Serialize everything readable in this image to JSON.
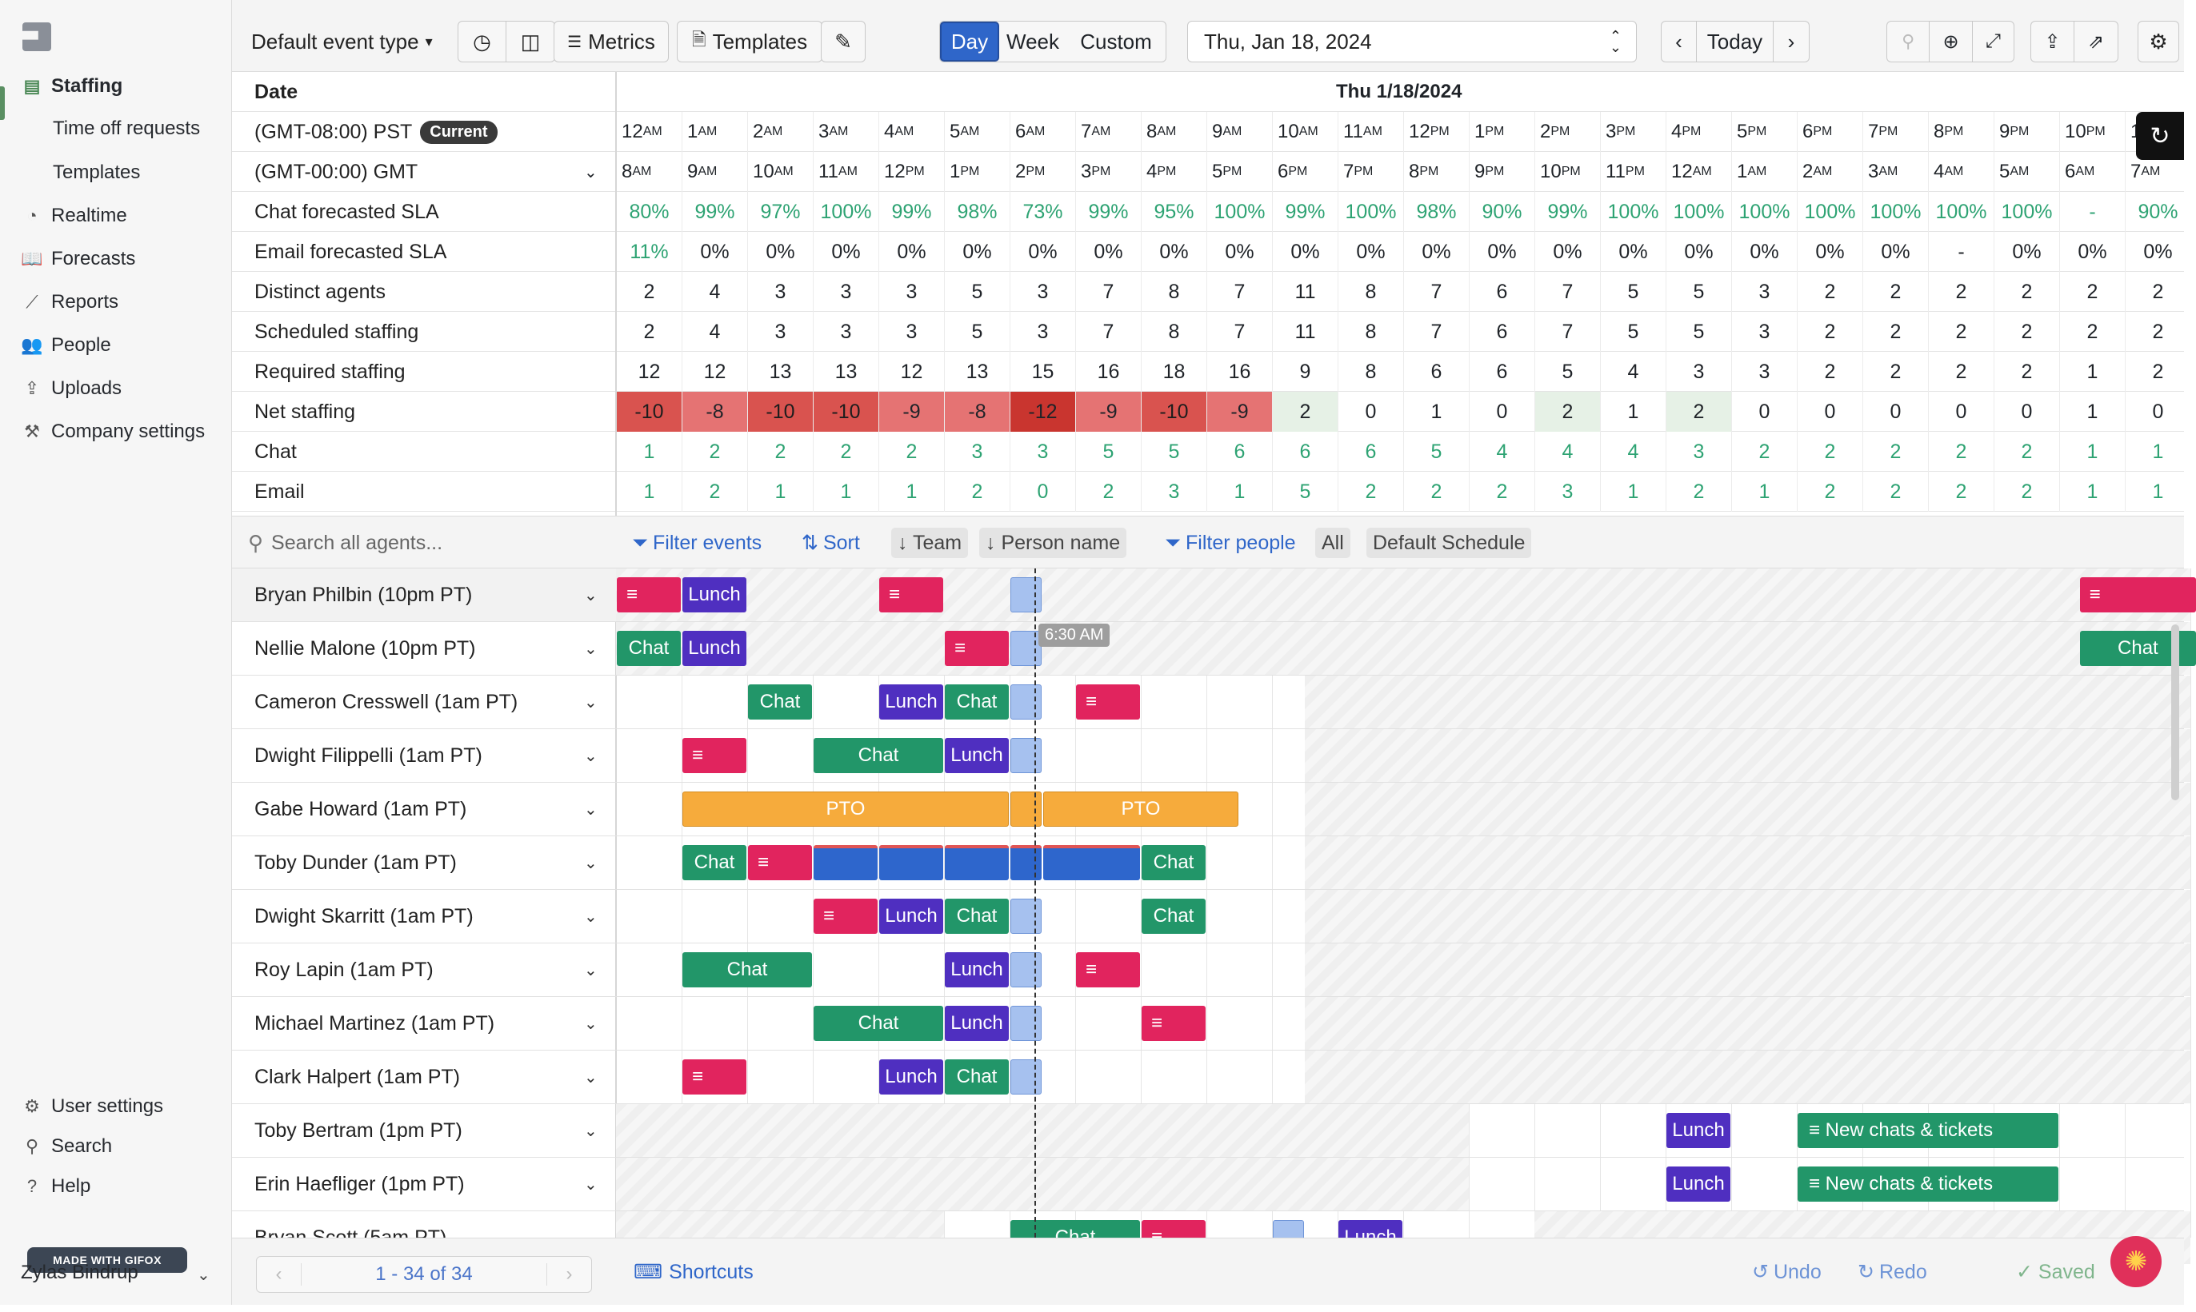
{
  "sidebar": {
    "items": [
      {
        "label": "Staffing",
        "icon": "staffing-icon",
        "glyph": "▤"
      },
      {
        "label": "Time off requests"
      },
      {
        "label": "Templates"
      },
      {
        "label": "Realtime",
        "icon": "gauge-icon",
        "glyph": "◔"
      },
      {
        "label": "Forecasts",
        "icon": "book-icon",
        "glyph": "📖"
      },
      {
        "label": "Reports",
        "icon": "trend-icon",
        "glyph": "⟋"
      },
      {
        "label": "People",
        "icon": "people-icon",
        "glyph": "👥"
      },
      {
        "label": "Uploads",
        "icon": "upload-icon",
        "glyph": "⇪"
      },
      {
        "label": "Company settings",
        "icon": "tools-icon",
        "glyph": "⚒"
      }
    ],
    "bottom": [
      {
        "label": "User settings",
        "icon": "gear-icon",
        "glyph": "⚙"
      },
      {
        "label": "Search",
        "icon": "search-icon",
        "glyph": "⚲"
      },
      {
        "label": "Help",
        "icon": "help-icon",
        "glyph": "?"
      }
    ],
    "gifox": "MADE WITH GIFOX",
    "user": "Zylas Bindrup"
  },
  "toolbar": {
    "event_type": "Default event type",
    "metrics": "Metrics",
    "templates": "Templates",
    "views": [
      "Day",
      "Week",
      "Custom"
    ],
    "date": "Thu, Jan 18, 2024",
    "today": "Today"
  },
  "grid": {
    "date_header": "Date",
    "day_header": "Thu 1/18/2024",
    "tz1": "(GMT-08:00) PST",
    "tz1_badge": "Current",
    "tz2": "(GMT-00:00) GMT",
    "pst_hours": [
      "12",
      "1",
      "2",
      "3",
      "4",
      "5",
      "6",
      "7",
      "8",
      "9",
      "10",
      "11",
      "12",
      "1",
      "2",
      "3",
      "4",
      "5",
      "6",
      "7",
      "8",
      "9",
      "10",
      "1"
    ],
    "pst_ampm": [
      "AM",
      "AM",
      "AM",
      "AM",
      "AM",
      "AM",
      "AM",
      "AM",
      "AM",
      "AM",
      "AM",
      "AM",
      "PM",
      "PM",
      "PM",
      "PM",
      "PM",
      "PM",
      "PM",
      "PM",
      "PM",
      "PM",
      "PM",
      ""
    ],
    "gmt_hours": [
      "8",
      "9",
      "10",
      "11",
      "12",
      "1",
      "2",
      "3",
      "4",
      "5",
      "6",
      "7",
      "8",
      "9",
      "10",
      "11",
      "12",
      "1",
      "2",
      "3",
      "4",
      "5",
      "6",
      "7"
    ],
    "gmt_ampm": [
      "AM",
      "AM",
      "AM",
      "AM",
      "PM",
      "PM",
      "PM",
      "PM",
      "PM",
      "PM",
      "PM",
      "PM",
      "PM",
      "PM",
      "PM",
      "PM",
      "AM",
      "AM",
      "AM",
      "AM",
      "AM",
      "AM",
      "AM",
      "AM"
    ],
    "rows": [
      {
        "label": "Chat forecasted SLA",
        "green": true,
        "values": [
          "80%",
          "99%",
          "97%",
          "100%",
          "99%",
          "98%",
          "73%",
          "99%",
          "95%",
          "100%",
          "99%",
          "100%",
          "98%",
          "90%",
          "99%",
          "100%",
          "100%",
          "100%",
          "100%",
          "100%",
          "100%",
          "100%",
          "-",
          "90%"
        ]
      },
      {
        "label": "Email forecasted SLA",
        "values": [
          "11%",
          "0%",
          "0%",
          "0%",
          "0%",
          "0%",
          "0%",
          "0%",
          "0%",
          "0%",
          "0%",
          "0%",
          "0%",
          "0%",
          "0%",
          "0%",
          "0%",
          "0%",
          "0%",
          "0%",
          "-",
          "0%",
          "0%",
          "0%"
        ],
        "first_green": true
      },
      {
        "label": "Distinct agents",
        "values": [
          "2",
          "4",
          "3",
          "3",
          "3",
          "5",
          "3",
          "7",
          "8",
          "7",
          "11",
          "8",
          "7",
          "6",
          "7",
          "5",
          "5",
          "3",
          "2",
          "2",
          "2",
          "2",
          "2",
          "2"
        ]
      },
      {
        "label": "Scheduled staffing",
        "values": [
          "2",
          "4",
          "3",
          "3",
          "3",
          "5",
          "3",
          "7",
          "8",
          "7",
          "11",
          "8",
          "7",
          "6",
          "7",
          "5",
          "5",
          "3",
          "2",
          "2",
          "2",
          "2",
          "2",
          "2"
        ]
      },
      {
        "label": "Required staffing",
        "values": [
          "12",
          "12",
          "13",
          "13",
          "12",
          "13",
          "15",
          "16",
          "18",
          "16",
          "9",
          "8",
          "6",
          "6",
          "5",
          "4",
          "3",
          "3",
          "2",
          "2",
          "2",
          "2",
          "1",
          "2"
        ]
      },
      {
        "label": "Net staffing",
        "net": true,
        "values": [
          "-10",
          "-8",
          "-10",
          "-10",
          "-9",
          "-8",
          "-12",
          "-9",
          "-10",
          "-9",
          "2",
          "0",
          "1",
          "0",
          "2",
          "1",
          "2",
          "0",
          "0",
          "0",
          "0",
          "0",
          "1",
          "0"
        ]
      },
      {
        "label": "Chat",
        "green": true,
        "values": [
          "1",
          "2",
          "2",
          "2",
          "2",
          "3",
          "3",
          "5",
          "5",
          "6",
          "6",
          "6",
          "5",
          "4",
          "4",
          "4",
          "3",
          "2",
          "2",
          "2",
          "2",
          "2",
          "1",
          "1"
        ]
      },
      {
        "label": "Email",
        "green": true,
        "values": [
          "1",
          "2",
          "1",
          "1",
          "1",
          "2",
          "0",
          "2",
          "3",
          "1",
          "5",
          "2",
          "2",
          "2",
          "3",
          "1",
          "2",
          "1",
          "2",
          "2",
          "2",
          "2",
          "1",
          "1"
        ]
      }
    ]
  },
  "filters": {
    "search_placeholder": "Search all agents...",
    "filter_events": "Filter events",
    "sort": "Sort",
    "team": "↓ Team",
    "person": "↓ Person name",
    "filter_people": "Filter people",
    "all": "All",
    "schedule": "Default Schedule"
  },
  "now_tip": "6:30 AM",
  "agents": [
    {
      "name": "Bryan Philbin (10pm PT)"
    },
    {
      "name": "Nellie Malone (10pm PT)"
    },
    {
      "name": "Cameron Cresswell (1am PT)"
    },
    {
      "name": "Dwight Filippelli (1am PT)"
    },
    {
      "name": "Gabe Howard (1am PT)"
    },
    {
      "name": "Toby Dunder (1am PT)"
    },
    {
      "name": "Dwight Skarritt (1am PT)"
    },
    {
      "name": "Roy Lapin (1am PT)"
    },
    {
      "name": "Michael Martinez (1am PT)"
    },
    {
      "name": "Clark Halpert (1am PT)"
    },
    {
      "name": "Toby Bertram (1pm PT)"
    },
    {
      "name": "Erin Haefliger (1pm PT)"
    },
    {
      "name": "Bryan Scott (5am PT)"
    }
  ],
  "events": [
    [
      [
        "note",
        "",
        0,
        1
      ],
      [
        "lunch",
        "Lunch",
        1,
        1
      ],
      [
        "note",
        "",
        4,
        1
      ],
      [
        "lite",
        "",
        6,
        0.5
      ],
      [
        "note",
        "",
        22.3,
        1.8
      ]
    ],
    [
      [
        "chat",
        "Chat",
        0,
        1
      ],
      [
        "lunch",
        "Lunch",
        1,
        1
      ],
      [
        "note",
        "",
        5,
        1
      ],
      [
        "lite",
        "",
        6,
        0.5
      ],
      [
        "chat",
        "Chat",
        22.3,
        1.8
      ]
    ],
    [
      [
        "chat",
        "Chat",
        2,
        1
      ],
      [
        "lunch",
        "Lunch",
        4,
        1
      ],
      [
        "chat",
        "Chat",
        5,
        1
      ],
      [
        "lite",
        "",
        6,
        0.5
      ],
      [
        "note",
        "",
        7,
        1
      ]
    ],
    [
      [
        "note",
        "",
        1,
        1
      ],
      [
        "chat",
        "Chat",
        3,
        2
      ],
      [
        "lunch",
        "Lunch",
        5,
        1
      ],
      [
        "lite",
        "",
        6,
        0.5
      ]
    ],
    [
      [
        "pto",
        "PTO",
        1,
        5
      ],
      [
        "pto",
        "",
        6,
        0.5
      ],
      [
        "pto",
        "PTO",
        6.5,
        3
      ]
    ],
    [
      [
        "chat",
        "Chat",
        1,
        1
      ],
      [
        "note",
        "",
        2,
        1
      ],
      [
        "blue",
        "",
        3,
        1
      ],
      [
        "blue",
        "",
        4,
        1
      ],
      [
        "blue",
        "",
        5,
        1
      ],
      [
        "blue",
        "",
        6,
        0.5
      ],
      [
        "blue",
        "",
        6.5,
        1.5
      ],
      [
        "chat",
        "Chat",
        8,
        1
      ]
    ],
    [
      [
        "note",
        "",
        3,
        1
      ],
      [
        "lunch",
        "Lunch",
        4,
        1
      ],
      [
        "chat",
        "Chat",
        5,
        1
      ],
      [
        "lite",
        "",
        6,
        0.5
      ],
      [
        "chat",
        "Chat",
        8,
        1
      ]
    ],
    [
      [
        "chat",
        "Chat",
        1,
        2
      ],
      [
        "lunch",
        "Lunch",
        5,
        1
      ],
      [
        "lite",
        "",
        6,
        0.5
      ],
      [
        "note",
        "",
        7,
        1
      ]
    ],
    [
      [
        "chat",
        "Chat",
        3,
        2
      ],
      [
        "lunch",
        "Lunch",
        5,
        1
      ],
      [
        "lite",
        "",
        6,
        0.5
      ],
      [
        "note",
        "",
        8,
        1
      ]
    ],
    [
      [
        "note",
        "",
        1,
        1
      ],
      [
        "lunch",
        "Lunch",
        4,
        1
      ],
      [
        "chat",
        "Chat",
        5,
        1
      ],
      [
        "lite",
        "",
        6,
        0.5
      ]
    ],
    [
      [
        "lunch",
        "Lunch",
        16,
        1
      ],
      [
        "chat",
        "≡  New chats & tickets",
        18,
        4
      ]
    ],
    [
      [
        "lunch",
        "Lunch",
        16,
        1
      ],
      [
        "chat",
        "≡  New chats & tickets",
        18,
        4
      ]
    ],
    [
      [
        "chat",
        "Chat",
        6,
        2
      ],
      [
        "note",
        "",
        8,
        1
      ],
      [
        "lite",
        "",
        10,
        0.5
      ],
      [
        "lunch",
        "Lunch",
        11,
        1
      ]
    ]
  ],
  "footer": {
    "pager": "1 - 34 of 34",
    "shortcuts": "Shortcuts",
    "undo": "Undo",
    "redo": "Redo",
    "saved": "✓ Saved"
  }
}
